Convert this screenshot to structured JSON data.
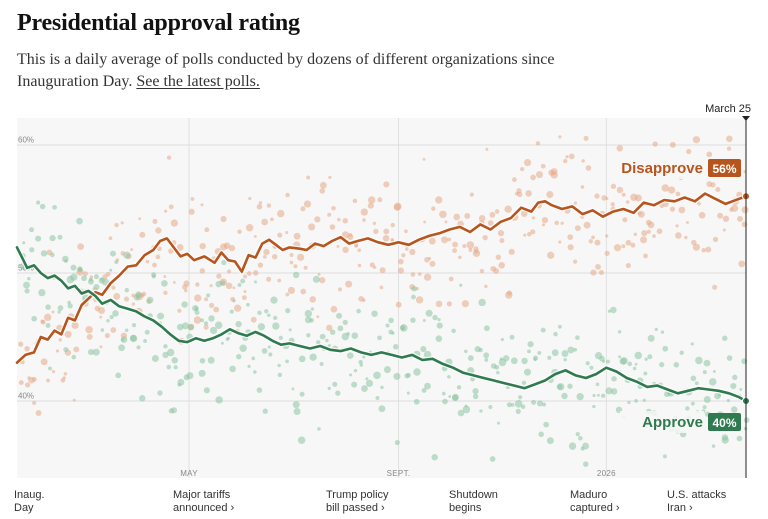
{
  "header": {
    "title": "Presidential approval rating",
    "description": "This is a daily average of polls conducted by dozens of different organizations since Inauguration Day.",
    "link_text": "See the latest polls."
  },
  "chart_data": {
    "type": "line",
    "title": "Presidential approval rating",
    "y_ticks": [
      "60%",
      "50%",
      "40%"
    ],
    "y_tick_values": [
      60,
      50,
      40
    ],
    "ylim": [
      34,
      62
    ],
    "x_tick_labels": [
      "MAY",
      "SEPT.",
      "2026"
    ],
    "x_tick_days": [
      101,
      224,
      346
    ],
    "x_domain_days": [
      0,
      428
    ],
    "current_date_label": "March 25",
    "grid": true,
    "series": [
      {
        "name": "Disapprove",
        "badge": "56%",
        "color": "#b7551f",
        "dot_color": "#e8a989",
        "values": [
          [
            0,
            43
          ],
          [
            5,
            43.6
          ],
          [
            10,
            43.8
          ],
          [
            14,
            45
          ],
          [
            18,
            44.8
          ],
          [
            22,
            45.5
          ],
          [
            26,
            45.2
          ],
          [
            30,
            46.5
          ],
          [
            34,
            46.3
          ],
          [
            38,
            47.5
          ],
          [
            42,
            48
          ],
          [
            46,
            48.5
          ],
          [
            50,
            48.3
          ],
          [
            55,
            49.2
          ],
          [
            60,
            49.8
          ],
          [
            65,
            50.5
          ],
          [
            70,
            50.6
          ],
          [
            75,
            51.4
          ],
          [
            80,
            51.8
          ],
          [
            84,
            52.5
          ],
          [
            88,
            52.7
          ],
          [
            92,
            52
          ],
          [
            96,
            51.3
          ],
          [
            100,
            51.5
          ],
          [
            104,
            51
          ],
          [
            110,
            51.3
          ],
          [
            116,
            50.8
          ],
          [
            120,
            51.6
          ],
          [
            124,
            51
          ],
          [
            128,
            50.9
          ],
          [
            132,
            50.1
          ],
          [
            136,
            51.4
          ],
          [
            140,
            51.2
          ],
          [
            144,
            52.3
          ],
          [
            148,
            52.6
          ],
          [
            152,
            52.2
          ],
          [
            156,
            51.8
          ],
          [
            160,
            52
          ],
          [
            166,
            51.9
          ],
          [
            170,
            51.8
          ],
          [
            175,
            52.3
          ],
          [
            180,
            52.1
          ],
          [
            185,
            52.5
          ],
          [
            190,
            52.8
          ],
          [
            195,
            52.3
          ],
          [
            200,
            52.5
          ],
          [
            206,
            52.7
          ],
          [
            212,
            52.4
          ],
          [
            218,
            52.2
          ],
          [
            224,
            52.4
          ],
          [
            230,
            52.2
          ],
          [
            236,
            52.6
          ],
          [
            242,
            52.9
          ],
          [
            248,
            53.1
          ],
          [
            254,
            53.4
          ],
          [
            260,
            53.6
          ],
          [
            266,
            53.2
          ],
          [
            272,
            53.8
          ],
          [
            278,
            53.4
          ],
          [
            284,
            54
          ],
          [
            290,
            54.3
          ],
          [
            296,
            55.1
          ],
          [
            302,
            54.8
          ],
          [
            306,
            55.5
          ],
          [
            310,
            55.6
          ],
          [
            314,
            55.3
          ],
          [
            320,
            55
          ],
          [
            326,
            55.2
          ],
          [
            332,
            54.6
          ],
          [
            338,
            54.9
          ],
          [
            344,
            54.4
          ],
          [
            350,
            54.8
          ],
          [
            356,
            55
          ],
          [
            362,
            54.7
          ],
          [
            368,
            55.5
          ],
          [
            374,
            55.3
          ],
          [
            380,
            55.7
          ],
          [
            386,
            55.6
          ],
          [
            392,
            55.9
          ],
          [
            398,
            55.6
          ],
          [
            404,
            56.2
          ],
          [
            410,
            55.8
          ],
          [
            416,
            55.4
          ],
          [
            420,
            55.6
          ],
          [
            424,
            55.8
          ],
          [
            428,
            56
          ]
        ]
      },
      {
        "name": "Approve",
        "badge": "40%",
        "color": "#2f7a4f",
        "dot_color": "#8dc5a3",
        "values": [
          [
            0,
            52
          ],
          [
            3,
            51.2
          ],
          [
            6,
            50.4
          ],
          [
            10,
            50.6
          ],
          [
            14,
            50
          ],
          [
            18,
            49.6
          ],
          [
            22,
            49.8
          ],
          [
            26,
            49.4
          ],
          [
            30,
            48.8
          ],
          [
            34,
            49
          ],
          [
            38,
            48.4
          ],
          [
            42,
            48.6
          ],
          [
            46,
            48.2
          ],
          [
            50,
            47.6
          ],
          [
            55,
            47.9
          ],
          [
            60,
            47.4
          ],
          [
            65,
            47.2
          ],
          [
            70,
            47
          ],
          [
            75,
            46.6
          ],
          [
            80,
            46.3
          ],
          [
            85,
            45.8
          ],
          [
            90,
            45.2
          ],
          [
            95,
            44.7
          ],
          [
            100,
            44.6
          ],
          [
            105,
            44.9
          ],
          [
            110,
            44.7
          ],
          [
            115,
            44.9
          ],
          [
            120,
            45.2
          ],
          [
            125,
            45.6
          ],
          [
            130,
            45.3
          ],
          [
            135,
            45.1
          ],
          [
            140,
            45.4
          ],
          [
            145,
            45.1
          ],
          [
            150,
            44.7
          ],
          [
            155,
            44.4
          ],
          [
            160,
            44.5
          ],
          [
            166,
            44.3
          ],
          [
            172,
            44.1
          ],
          [
            178,
            44.3
          ],
          [
            184,
            44
          ],
          [
            190,
            43.9
          ],
          [
            196,
            44.1
          ],
          [
            202,
            43.8
          ],
          [
            208,
            43.6
          ],
          [
            214,
            43.8
          ],
          [
            220,
            43.6
          ],
          [
            226,
            43.4
          ],
          [
            232,
            43.6
          ],
          [
            238,
            43.2
          ],
          [
            244,
            43.3
          ],
          [
            250,
            42.9
          ],
          [
            256,
            42.6
          ],
          [
            262,
            42.2
          ],
          [
            268,
            42
          ],
          [
            274,
            41.8
          ],
          [
            280,
            41.6
          ],
          [
            286,
            41.4
          ],
          [
            292,
            41.2
          ],
          [
            298,
            41
          ],
          [
            304,
            41.3
          ],
          [
            310,
            41.6
          ],
          [
            316,
            42.1
          ],
          [
            322,
            42.4
          ],
          [
            328,
            42
          ],
          [
            334,
            41.8
          ],
          [
            340,
            42.1
          ],
          [
            346,
            42.6
          ],
          [
            352,
            42.3
          ],
          [
            358,
            41.8
          ],
          [
            364,
            41.5
          ],
          [
            370,
            41.1
          ],
          [
            376,
            41.2
          ],
          [
            382,
            40.9
          ],
          [
            388,
            40.6
          ],
          [
            394,
            40.8
          ],
          [
            400,
            41
          ],
          [
            406,
            40.9
          ],
          [
            412,
            40.8
          ],
          [
            418,
            40.6
          ],
          [
            424,
            40.3
          ],
          [
            428,
            40
          ]
        ]
      }
    ]
  },
  "events": [
    {
      "label": "Inaug.\nDay",
      "link": false
    },
    {
      "label": "Major tariffs\nannounced ›",
      "link": true
    },
    {
      "label": "Trump policy\nbill passed ›",
      "link": true
    },
    {
      "label": "Shutdown\nbegins",
      "link": false
    },
    {
      "label": "Maduro\ncaptured ›",
      "link": true
    },
    {
      "label": "U.S. attacks\nIran ›",
      "link": true
    }
  ]
}
